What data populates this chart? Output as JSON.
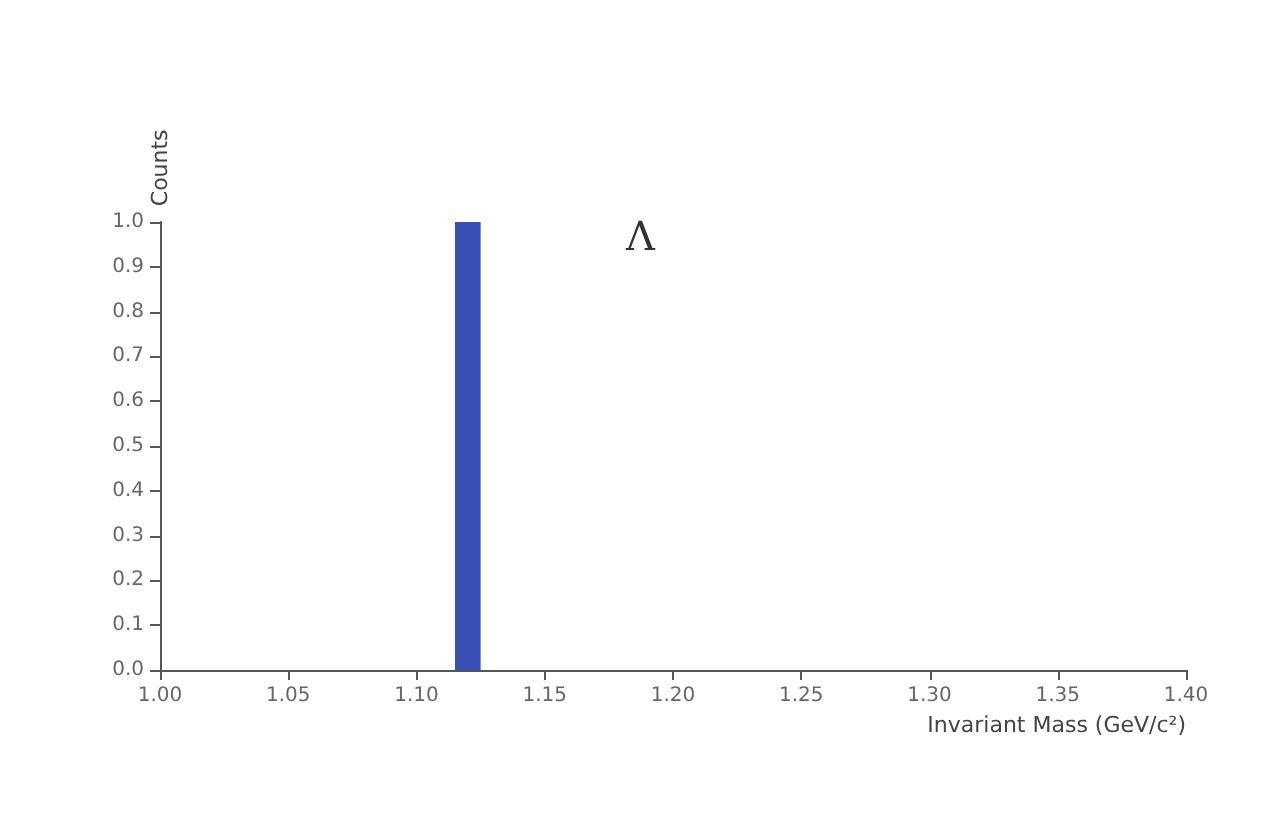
{
  "chart_data": {
    "type": "histogram",
    "xlabel": "Invariant Mass (GeV/c²)",
    "ylabel": "Counts",
    "annotations": [
      "Λ"
    ],
    "bins": [
      1.115,
      1.125
    ],
    "values": [
      1
    ],
    "color": "#3a4fb8",
    "xlim": [
      1.0,
      1.4
    ],
    "xticks": [
      {
        "value": 1.0,
        "label": "1.00"
      },
      {
        "value": 1.05,
        "label": "1.05"
      },
      {
        "value": 1.1,
        "label": "1.10"
      },
      {
        "value": 1.15,
        "label": "1.15"
      },
      {
        "value": 1.2,
        "label": "1.20"
      },
      {
        "value": 1.25,
        "label": "1.25"
      },
      {
        "value": 1.3,
        "label": "1.30"
      },
      {
        "value": 1.35,
        "label": "1.35"
      },
      {
        "value": 1.4,
        "label": "1.40"
      }
    ],
    "ylim": [
      0,
      1.0
    ],
    "yticks": [
      {
        "value": 0,
        "label": "0.0"
      },
      {
        "value": 0.1,
        "label": "0.1"
      },
      {
        "value": 0.2,
        "label": "0.2"
      },
      {
        "value": 0.3,
        "label": "0.3"
      },
      {
        "value": 0.4,
        "label": "0.4"
      },
      {
        "value": 0.5,
        "label": "0.5"
      },
      {
        "value": 0.6,
        "label": "0.6"
      },
      {
        "value": 0.7,
        "label": "0.7"
      },
      {
        "value": 0.8,
        "label": "0.8"
      },
      {
        "value": 0.9,
        "label": "0.9"
      },
      {
        "value": 1.0,
        "label": "1.0"
      }
    ],
    "grid": false
  }
}
